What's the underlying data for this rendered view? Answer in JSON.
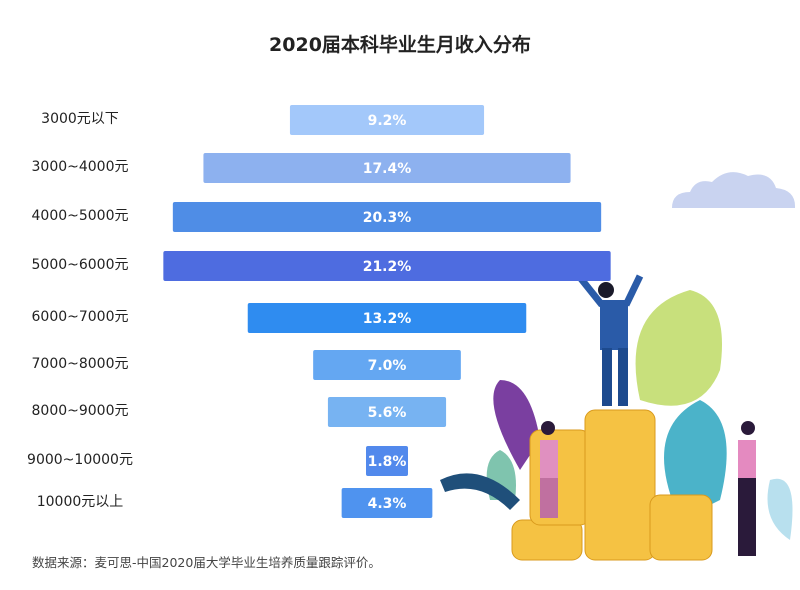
{
  "chart_data": {
    "type": "bar",
    "orientation": "horizontal-centered",
    "title": "2020届本科毕业生月收入分布",
    "categories": [
      "3000元以下",
      "3000~4000元",
      "4000~5000元",
      "5000~6000元",
      "6000~7000元",
      "7000~8000元",
      "8000~9000元",
      "9000~10000元",
      "10000元以上"
    ],
    "values": [
      9.2,
      17.4,
      20.3,
      21.2,
      13.2,
      7.0,
      5.6,
      1.8,
      4.3
    ],
    "labels": [
      "9.2%",
      "17.4%",
      "20.3%",
      "21.2%",
      "13.2%",
      "7.0%",
      "5.6%",
      "1.8%",
      "4.3%"
    ],
    "colors": [
      "#a3c8fa",
      "#8db1ef",
      "#4f8de6",
      "#4e6ce0",
      "#2f8cf0",
      "#64a7f2",
      "#77b3f2",
      "#5289ec",
      "#4f93ef"
    ],
    "unit": "%",
    "grid": false
  },
  "source": "数据来源：麦可思-中国2020届大学毕业生培养质量跟踪评价。"
}
